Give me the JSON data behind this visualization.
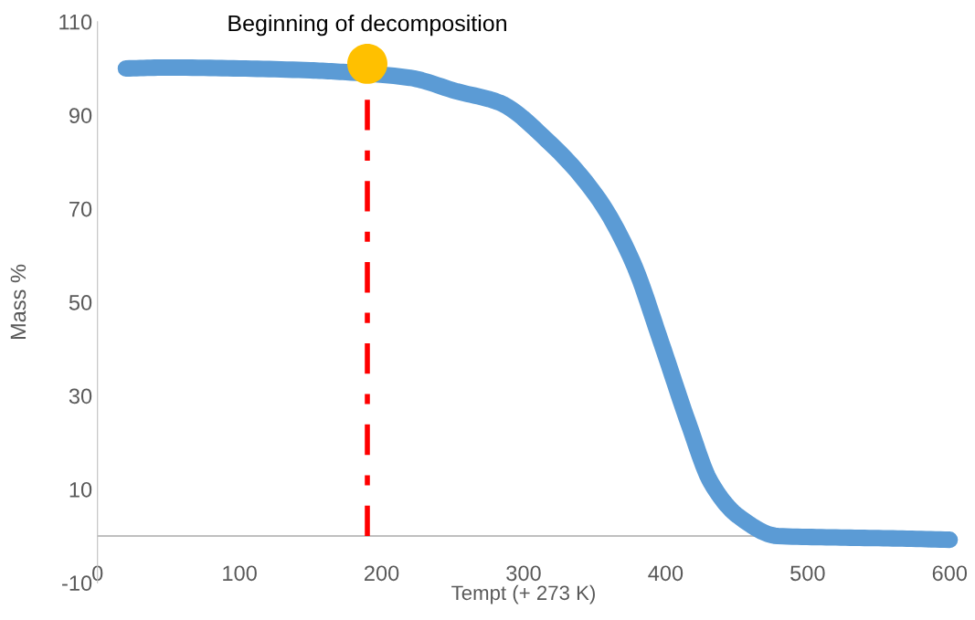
{
  "chart_data": {
    "type": "line",
    "xlabel": "Tempt (+ 273 K)",
    "ylabel": "Mass %",
    "series": [
      {
        "color": "#5b9bd5",
        "x": [
          20,
          50,
          100,
          150,
          175,
          220,
          253,
          283,
          316,
          353,
          377,
          397,
          416,
          432,
          451,
          479,
          520,
          560,
          600
        ],
        "values": [
          100,
          100.2,
          100,
          99.6,
          99.2,
          98,
          95.1,
          92.7,
          84.8,
          72,
          58.5,
          41.3,
          24.2,
          11.4,
          4.3,
          0,
          -0.3,
          -0.5,
          -0.8
        ]
      },
      {
        "type": "scatter",
        "color": "#ffc000",
        "x": [
          190
        ],
        "values": [
          101
        ]
      }
    ],
    "xlim": [
      0,
      600
    ],
    "ylim": [
      -10,
      110
    ],
    "xticks": [
      0,
      100,
      200,
      300,
      400,
      500,
      600
    ],
    "yticks": [
      -10,
      10,
      30,
      50,
      70,
      90,
      110
    ],
    "ref_lines": [
      {
        "axis": "x",
        "value": 190,
        "color": "#ff0000",
        "line_style": "dashdot"
      }
    ],
    "annotations": [
      {
        "text": "Beginning of decomposition",
        "x": 190,
        "y": 101
      }
    ],
    "grid": false,
    "legend": false
  }
}
